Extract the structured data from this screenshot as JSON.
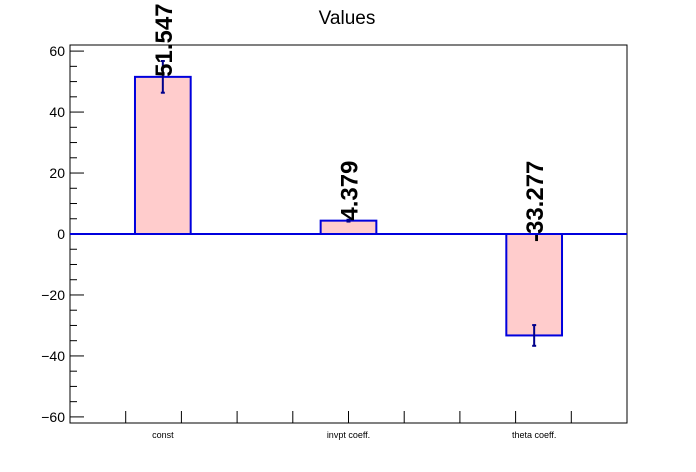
{
  "chart_data": {
    "type": "bar",
    "title": "Values",
    "categories": [
      "const",
      "invpt coeff.",
      "theta coeff."
    ],
    "values": [
      51.547,
      4.379,
      -33.277
    ],
    "errors": [
      5.2,
      0.3,
      3.4
    ],
    "data_labels": [
      "51.547",
      "4.379",
      "-33.277"
    ],
    "xlabel": "",
    "ylabel": "",
    "ylim": [
      -62,
      62
    ],
    "yticks": [
      -60,
      -40,
      -20,
      0,
      20,
      40,
      60
    ],
    "ytick_labels": [
      "−60",
      "−40",
      "−20",
      "0",
      "20",
      "40",
      "60"
    ],
    "grid": false,
    "colors": {
      "bar_fill": "#ffcccc",
      "bar_edge": "#0000dd",
      "zero_line": "#0000dd",
      "error_bar": "#00008b",
      "axis": "#000000"
    }
  }
}
